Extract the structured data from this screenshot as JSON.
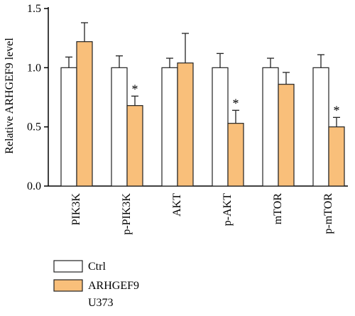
{
  "chart_data": {
    "type": "bar",
    "ylabel": "Relative ARHGEF9 level",
    "ylim": [
      0,
      1.5
    ],
    "yticks": [
      "0.0",
      "0.5",
      "1.0",
      "1.5"
    ],
    "ytick_values": [
      0,
      0.5,
      1.0,
      1.5
    ],
    "categories": [
      "PIK3K",
      "p-PIK3K",
      "AKT",
      "p-AKT",
      "mTOR",
      "p-mTOR"
    ],
    "series": [
      {
        "name": "Ctrl",
        "values": [
          1.0,
          1.0,
          1.0,
          1.0,
          1.0,
          1.0
        ],
        "errors": [
          0.09,
          0.1,
          0.08,
          0.12,
          0.08,
          0.11
        ],
        "color": "#ffffff"
      },
      {
        "name": "ARHGEF9",
        "values": [
          1.22,
          0.68,
          1.04,
          0.53,
          0.86,
          0.5
        ],
        "errors": [
          0.16,
          0.08,
          0.25,
          0.11,
          0.1,
          0.08
        ],
        "color": "#f9bf7a"
      }
    ],
    "significance": [
      "",
      "*",
      "",
      "*",
      "",
      "*"
    ],
    "legend_position": "bottom-left",
    "legend_sublabel": "U373",
    "grid": false
  }
}
